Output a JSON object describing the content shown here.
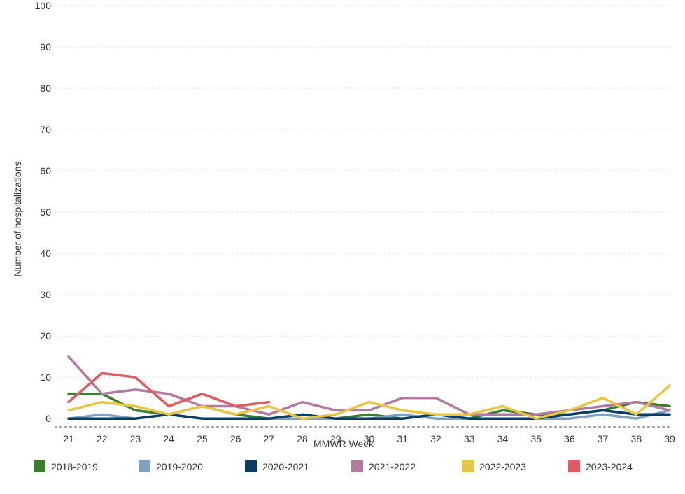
{
  "chart_data": {
    "type": "line",
    "xlabel": "MMWR Week",
    "ylabel": "Number of hospitalizations",
    "x": [
      21,
      22,
      23,
      24,
      25,
      26,
      27,
      28,
      29,
      30,
      31,
      32,
      33,
      34,
      35,
      36,
      37,
      38,
      39
    ],
    "xlim": [
      21,
      39
    ],
    "ylim": [
      -2,
      100
    ],
    "yticks": [
      0,
      10,
      20,
      30,
      40,
      50,
      60,
      70,
      80,
      90,
      100
    ],
    "grid": true,
    "legend_position": "bottom",
    "series": [
      {
        "name": "2018-2019",
        "color": "#3a7d2c",
        "values": [
          6,
          6,
          2,
          1,
          3,
          1,
          0,
          0,
          0,
          1,
          0,
          1,
          0,
          2,
          1,
          1,
          2,
          4,
          3
        ]
      },
      {
        "name": "2019-2020",
        "color": "#7f9fbf",
        "values": [
          0,
          1,
          0,
          1,
          0,
          0,
          0,
          0,
          0,
          0,
          1,
          0,
          0,
          0,
          0,
          0,
          1,
          0,
          2
        ]
      },
      {
        "name": "2020-2021",
        "color": "#0a3d62",
        "values": [
          0,
          0,
          0,
          1,
          0,
          0,
          0,
          1,
          0,
          0,
          0,
          1,
          0,
          0,
          0,
          1,
          2,
          1,
          1
        ]
      },
      {
        "name": "2021-2022",
        "color": "#b07aa1",
        "values": [
          15,
          6,
          7,
          6,
          3,
          3,
          1,
          4,
          2,
          2,
          5,
          5,
          1,
          1,
          1,
          2,
          3,
          4,
          2
        ]
      },
      {
        "name": "2022-2023",
        "color": "#e8c547",
        "values": [
          2,
          4,
          3,
          1,
          3,
          1,
          3,
          0,
          1,
          4,
          2,
          1,
          1,
          3,
          0,
          2,
          5,
          1,
          8
        ]
      },
      {
        "name": "2023-2024",
        "color": "#e05a5f",
        "values": [
          4,
          11,
          10,
          3,
          6,
          3,
          4,
          null,
          null,
          null,
          null,
          null,
          null,
          null,
          null,
          null,
          null,
          null,
          null
        ]
      }
    ]
  }
}
